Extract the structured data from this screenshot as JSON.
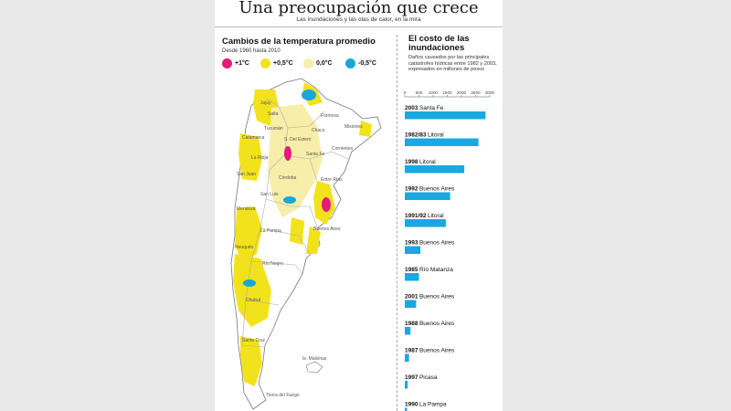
{
  "header": {
    "title": "Una preocupación que crece",
    "subtitle": "Las inundaciones y las olas de calor, en la mira"
  },
  "temperature": {
    "heading": "Cambios de la temperatura promedio",
    "period": "Desde 1960 hasta 2010",
    "legend": [
      {
        "label": "+1°C",
        "color": "#e8197a"
      },
      {
        "label": "+0,5°C",
        "color": "#f2e21b"
      },
      {
        "label": "0,0°C",
        "color": "#f7eeaa"
      },
      {
        "label": "-0,5°C",
        "color": "#1aa6d8"
      }
    ],
    "map_labels": [
      "Salta",
      "Jujuy",
      "Formosa",
      "Tucumán",
      "Catamarca",
      "S. Del Estero",
      "Chaco",
      "Misiones",
      "Corrientes",
      "La Rioja",
      "Santa Fe",
      "San Juan",
      "Córdoba",
      "Entre Ríos",
      "San Luis",
      "Mendoza",
      "Buenos Aires",
      "La Pampa",
      "Neuquén",
      "Río Negro",
      "Chubut",
      "Santa Cruz",
      "Is. Malvinas",
      "Tierra del Fuego"
    ]
  },
  "floods": {
    "heading": "El costo de las inundaciones",
    "description": "Daños causados por las principales catástrofes hídricas entre 1982 y 2003, expresados en millones de pesos",
    "bar_color": "#19a8e0"
  },
  "chart_data": {
    "type": "bar",
    "orientation": "horizontal",
    "title": "El costo de las inundaciones",
    "xlim": [
      0,
      3000
    ],
    "xticks": [
      0,
      500,
      1000,
      1500,
      2000,
      2500,
      3000
    ],
    "categories": [
      "2003 Santa Fe",
      "1982/83 Litoral",
      "1998 Litoral",
      "1992 Buenos Aires",
      "1991/92 Litoral",
      "1993 Buenos Aires",
      "1985 Río Matanza",
      "2001 Buenos Aires",
      "1988 Buenos Aires",
      "1987 Buenos Aires",
      "1997 Picasa",
      "1990 La Pampa"
    ],
    "years": [
      "2003",
      "1982/83",
      "1998",
      "1992",
      "1991/92",
      "1993",
      "1985",
      "2001",
      "1988",
      "1987",
      "1997",
      "1990"
    ],
    "places": [
      "Santa Fe",
      "Litoral",
      "Litoral",
      "Buenos Aires",
      "Litoral",
      "Buenos Aires",
      "Río Matanza",
      "Buenos Aires",
      "Buenos Aires",
      "Buenos Aires",
      "Picasa",
      "La Pampa"
    ],
    "values": [
      2850,
      2600,
      2100,
      1600,
      1450,
      550,
      500,
      400,
      200,
      150,
      100,
      80
    ],
    "grid": false
  }
}
